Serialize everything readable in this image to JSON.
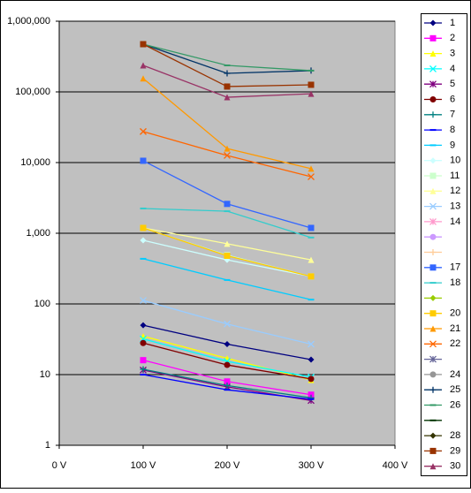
{
  "chart_data": {
    "type": "line",
    "log_y": true,
    "grid": true,
    "legend": "right",
    "plot_background": "#c0c0c0",
    "x": [
      100,
      200,
      300
    ],
    "xlim": [
      0,
      400
    ],
    "xticks": [
      {
        "value": 0,
        "label": "0 V"
      },
      {
        "value": 100,
        "label": "100 V"
      },
      {
        "value": 200,
        "label": "200 V"
      },
      {
        "value": 300,
        "label": "300 V"
      },
      {
        "value": 400,
        "label": "400 V"
      }
    ],
    "ylim": [
      1,
      1000000
    ],
    "yticks": [
      1,
      10,
      100,
      {
        "value": 1000,
        "label": "1,000"
      },
      {
        "value": 10000,
        "label": "10,000"
      },
      {
        "value": 100000,
        "label": "100,000"
      },
      {
        "value": 1000000,
        "label": "1,000,000"
      }
    ],
    "series": [
      {
        "name": "1",
        "color": "#000080",
        "marker": "diamond",
        "values": [
          50,
          27,
          16.3
        ]
      },
      {
        "name": "2",
        "color": "#ff00ff",
        "marker": "square",
        "values": [
          16,
          8,
          5.2
        ]
      },
      {
        "name": "3",
        "color": "#ffff00",
        "marker": "triangle",
        "values": [
          35,
          17,
          8.4
        ]
      },
      {
        "name": "4",
        "color": "#00ffff",
        "marker": "x",
        "values": [
          32,
          15.4,
          9.2
        ]
      },
      {
        "name": "5",
        "color": "#800080",
        "marker": "star",
        "values": [
          11.6,
          6.7,
          4.3
        ]
      },
      {
        "name": "6",
        "color": "#800000",
        "marker": "circle",
        "values": [
          28,
          13.7,
          8.7
        ]
      },
      {
        "name": "7",
        "color": "#008080",
        "marker": "plus",
        "values": [
          11.9,
          7,
          4.7
        ]
      },
      {
        "name": "8",
        "color": "#0000ff",
        "marker": "dash",
        "values": [
          10,
          6.1,
          4.5
        ]
      },
      {
        "name": "9",
        "color": "#00ccff",
        "marker": "dash",
        "values": [
          435,
          218,
          115
        ]
      },
      {
        "name": "10",
        "color": "#ccffff",
        "marker": "diamond",
        "values": [
          794,
          420,
          245
        ]
      },
      {
        "name": "11",
        "color": "#ccffcc",
        "marker": "square",
        "values": [
          1190,
          490,
          245
        ]
      },
      {
        "name": "12",
        "color": "#ffff99",
        "marker": "triangle",
        "values": [
          1190,
          710,
          420
        ]
      },
      {
        "name": "13",
        "color": "#99ccff",
        "marker": "x",
        "values": [
          112,
          52,
          27
        ]
      },
      {
        "name": "14",
        "color": "#ff99cc",
        "marker": "star",
        "values": [
          null,
          null,
          null
        ]
      },
      {
        "name": null,
        "color": "#cc99ff",
        "marker": "circle",
        "values": [
          null,
          null,
          null
        ]
      },
      {
        "name": null,
        "color": "#ffcc99",
        "marker": "plus",
        "values": [
          null,
          null,
          null
        ]
      },
      {
        "name": "17",
        "color": "#3366ff",
        "marker": "square",
        "values": [
          10600,
          2600,
          1190
        ]
      },
      {
        "name": "18",
        "color": "#33cccc",
        "marker": "dash",
        "values": [
          2240,
          2050,
          870
        ]
      },
      {
        "name": null,
        "color": "#99cc00",
        "marker": "diamond",
        "values": [
          null,
          null,
          null
        ]
      },
      {
        "name": "20",
        "color": "#ffcc00",
        "marker": "square",
        "values": [
          1190,
          480,
          245
        ]
      },
      {
        "name": "21",
        "color": "#ff9900",
        "marker": "triangle",
        "values": [
          155000,
          15800,
          8200
        ]
      },
      {
        "name": "22",
        "color": "#ff6600",
        "marker": "x",
        "values": [
          27500,
          12600,
          6300
        ]
      },
      {
        "name": null,
        "color": "#666699",
        "marker": "star",
        "values": [
          null,
          null,
          null
        ]
      },
      {
        "name": "24",
        "color": "#969696",
        "marker": "circle",
        "values": [
          null,
          null,
          null
        ]
      },
      {
        "name": "25",
        "color": "#003366",
        "marker": "plus",
        "values": [
          473000,
          183000,
          200000
        ]
      },
      {
        "name": "26",
        "color": "#339966",
        "marker": "dash",
        "values": [
          473000,
          237000,
          200000
        ]
      },
      {
        "name": null,
        "color": "#003300",
        "marker": "dash",
        "values": [
          null,
          null,
          null
        ]
      },
      {
        "name": "28",
        "color": "#333300",
        "marker": "diamond",
        "values": [
          null,
          null,
          null
        ]
      },
      {
        "name": "29",
        "color": "#993300",
        "marker": "square",
        "values": [
          473000,
          119000,
          126000
        ]
      },
      {
        "name": "30",
        "color": "#993366",
        "marker": "triangle",
        "values": [
          237000,
          84000,
          94000
        ]
      }
    ]
  }
}
